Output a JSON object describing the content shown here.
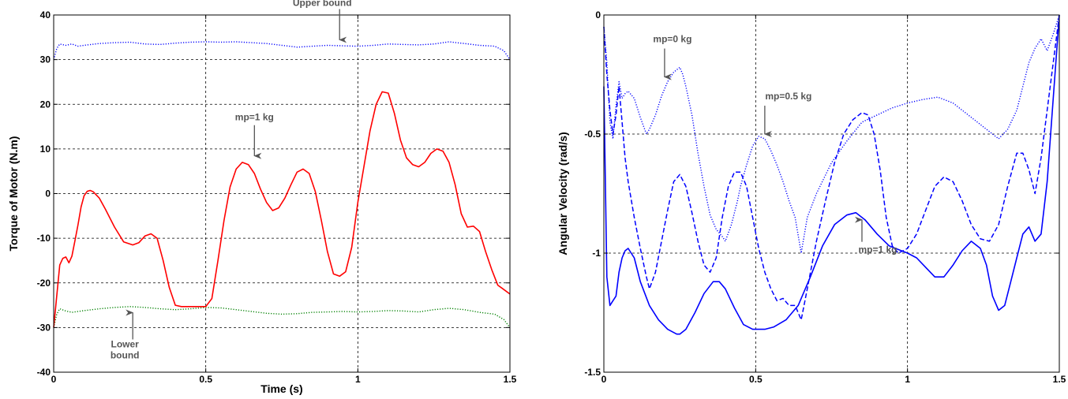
{
  "chart_data": [
    {
      "type": "line",
      "xlabel": "Time (s)",
      "ylabel": "Torque of Motor (N.m)",
      "xlim": [
        0,
        1.5
      ],
      "ylim": [
        -40,
        40
      ],
      "xticks": [
        "0",
        "0.5",
        "1",
        "1.5"
      ],
      "yticks": [
        "-40",
        "-30",
        "-20",
        "-10",
        "0",
        "10",
        "20",
        "30",
        "40"
      ],
      "grid": true,
      "series": [
        {
          "style": "dotted",
          "color": "#0000ff",
          "x": [
            0,
            0.01,
            0.02,
            0.04,
            0.06,
            0.08,
            0.1,
            0.15,
            0.2,
            0.25,
            0.3,
            0.35,
            0.4,
            0.45,
            0.5,
            0.55,
            0.6,
            0.65,
            0.7,
            0.75,
            0.8,
            0.85,
            0.9,
            0.95,
            1.0,
            1.05,
            1.1,
            1.15,
            1.2,
            1.25,
            1.3,
            1.35,
            1.4,
            1.45,
            1.48,
            1.5
          ],
          "y": [
            30,
            32.5,
            33.5,
            33.2,
            33.5,
            33.0,
            33.2,
            33.6,
            33.8,
            33.9,
            33.5,
            33.4,
            33.7,
            33.9,
            34.0,
            33.9,
            34.0,
            33.8,
            33.6,
            33.2,
            32.8,
            33.0,
            33.2,
            33.1,
            33.0,
            33.2,
            33.5,
            33.4,
            33.3,
            33.5,
            34.0,
            33.6,
            33.2,
            33.0,
            32.0,
            30.0
          ]
        },
        {
          "style": "dotted",
          "color": "#008000",
          "x": [
            0,
            0.01,
            0.02,
            0.04,
            0.06,
            0.1,
            0.15,
            0.2,
            0.25,
            0.3,
            0.35,
            0.4,
            0.45,
            0.5,
            0.55,
            0.6,
            0.65,
            0.7,
            0.75,
            0.8,
            0.85,
            0.9,
            0.95,
            1.0,
            1.05,
            1.1,
            1.15,
            1.2,
            1.25,
            1.3,
            1.35,
            1.4,
            1.45,
            1.48,
            1.5
          ],
          "y": [
            -30,
            -27,
            -25.8,
            -26.3,
            -26.6,
            -26.2,
            -25.8,
            -25.5,
            -25.3,
            -25.5,
            -25.8,
            -26.0,
            -25.8,
            -25.5,
            -25.6,
            -26.0,
            -26.4,
            -26.8,
            -27.0,
            -26.9,
            -26.6,
            -26.5,
            -26.4,
            -26.5,
            -26.4,
            -26.2,
            -26.3,
            -26.5,
            -26.0,
            -25.7,
            -26.0,
            -26.6,
            -27.0,
            -28.2,
            -30.0
          ]
        },
        {
          "name": "mp=1 kg",
          "style": "solid",
          "color": "#ff0000",
          "x": [
            0,
            0.02,
            0.03,
            0.04,
            0.05,
            0.06,
            0.07,
            0.08,
            0.09,
            0.1,
            0.11,
            0.12,
            0.13,
            0.15,
            0.17,
            0.2,
            0.23,
            0.26,
            0.28,
            0.3,
            0.32,
            0.34,
            0.36,
            0.38,
            0.4,
            0.42,
            0.44,
            0.46,
            0.48,
            0.5,
            0.52,
            0.54,
            0.56,
            0.58,
            0.6,
            0.62,
            0.64,
            0.66,
            0.68,
            0.7,
            0.72,
            0.74,
            0.76,
            0.78,
            0.8,
            0.82,
            0.84,
            0.86,
            0.88,
            0.9,
            0.92,
            0.94,
            0.96,
            0.98,
            1.0,
            1.02,
            1.04,
            1.06,
            1.08,
            1.1,
            1.12,
            1.14,
            1.16,
            1.18,
            1.2,
            1.22,
            1.24,
            1.26,
            1.28,
            1.3,
            1.32,
            1.34,
            1.36,
            1.38,
            1.4,
            1.42,
            1.44,
            1.46,
            1.48,
            1.5
          ],
          "y": [
            -30,
            -16,
            -14.5,
            -14.2,
            -15.5,
            -14,
            -10.5,
            -7,
            -3,
            -0.5,
            0.5,
            0.7,
            0.4,
            -1,
            -3.5,
            -7.5,
            -10.8,
            -11.5,
            -11,
            -9.5,
            -9,
            -10,
            -15,
            -21,
            -25,
            -25.3,
            -25.3,
            -25.3,
            -25.3,
            -25.3,
            -23.5,
            -15,
            -6,
            1.5,
            5.5,
            7,
            6.5,
            4.5,
            1,
            -2,
            -3.8,
            -3.2,
            -1,
            2,
            4.8,
            5.5,
            4.5,
            0.5,
            -6,
            -13,
            -18,
            -18.5,
            -17.5,
            -12,
            -2,
            6,
            14,
            20,
            22.8,
            22.5,
            18,
            12,
            8,
            6.5,
            6,
            7,
            9,
            10,
            9.5,
            7,
            2,
            -4.5,
            -7.5,
            -7.3,
            -8.5,
            -13,
            -17,
            -20.5,
            -21.5,
            -22.5
          ]
        }
      ],
      "annotations": [
        {
          "text": "Upper bound",
          "x": 0.94,
          "y": 33.2
        },
        {
          "text": "mp=1 kg",
          "x": 0.66,
          "y": 7.2
        },
        {
          "text": "Lower",
          "x": 0.26,
          "y": -25.6
        },
        {
          "text": "bound",
          "x": 0.26,
          "y": -25.6
        }
      ]
    },
    {
      "type": "line",
      "xlabel": "",
      "ylabel": "Angular Velocity (rad/s)",
      "xlim": [
        0,
        1.5
      ],
      "ylim": [
        -1.5,
        0
      ],
      "xticks": [
        "0",
        "0.5",
        "1",
        "1.5"
      ],
      "yticks": [
        "-1.5",
        "-1",
        "-0.5",
        "0"
      ],
      "grid": true,
      "series": [
        {
          "name": "mp=0 kg",
          "style": "dotted",
          "color": "#0000ff",
          "x": [
            0,
            0.01,
            0.02,
            0.03,
            0.04,
            0.05,
            0.06,
            0.07,
            0.08,
            0.1,
            0.12,
            0.14,
            0.15,
            0.17,
            0.19,
            0.21,
            0.23,
            0.25,
            0.26,
            0.27,
            0.29,
            0.31,
            0.33,
            0.35,
            0.37,
            0.39,
            0.4,
            0.42,
            0.44,
            0.45,
            0.47,
            0.49,
            0.51,
            0.53,
            0.55,
            0.57,
            0.59,
            0.61,
            0.63,
            0.65,
            0.67,
            0.7,
            0.75,
            0.8,
            0.85,
            0.9,
            0.95,
            1.0,
            1.05,
            1.1,
            1.15,
            1.2,
            1.25,
            1.3,
            1.33,
            1.36,
            1.38,
            1.4,
            1.42,
            1.44,
            1.46,
            1.48,
            1.5
          ],
          "y": [
            -0.05,
            -0.2,
            -0.45,
            -0.52,
            -0.38,
            -0.28,
            -0.35,
            -0.33,
            -0.32,
            -0.35,
            -0.43,
            -0.5,
            -0.48,
            -0.42,
            -0.34,
            -0.28,
            -0.24,
            -0.22,
            -0.25,
            -0.3,
            -0.42,
            -0.58,
            -0.72,
            -0.84,
            -0.9,
            -0.93,
            -0.95,
            -0.88,
            -0.78,
            -0.72,
            -0.63,
            -0.55,
            -0.51,
            -0.52,
            -0.57,
            -0.63,
            -0.7,
            -0.78,
            -0.85,
            -1.0,
            -0.85,
            -0.75,
            -0.62,
            -0.53,
            -0.45,
            -0.42,
            -0.39,
            -0.37,
            -0.355,
            -0.345,
            -0.37,
            -0.42,
            -0.47,
            -0.52,
            -0.48,
            -0.4,
            -0.3,
            -0.2,
            -0.14,
            -0.1,
            -0.15,
            -0.08,
            0.0
          ]
        },
        {
          "name": "mp=0.5 kg",
          "style": "dashed",
          "color": "#0000ff",
          "x": [
            0,
            0.01,
            0.02,
            0.03,
            0.04,
            0.05,
            0.06,
            0.07,
            0.08,
            0.1,
            0.12,
            0.14,
            0.15,
            0.17,
            0.19,
            0.21,
            0.23,
            0.25,
            0.27,
            0.29,
            0.31,
            0.33,
            0.35,
            0.37,
            0.39,
            0.41,
            0.43,
            0.45,
            0.47,
            0.49,
            0.51,
            0.53,
            0.55,
            0.57,
            0.59,
            0.61,
            0.63,
            0.65,
            0.67,
            0.7,
            0.73,
            0.76,
            0.79,
            0.82,
            0.85,
            0.87,
            0.89,
            0.91,
            0.93,
            0.95,
            0.97,
            1.0,
            1.03,
            1.06,
            1.09,
            1.12,
            1.15,
            1.18,
            1.21,
            1.24,
            1.27,
            1.3,
            1.33,
            1.36,
            1.38,
            1.4,
            1.42,
            1.44,
            1.46,
            1.48,
            1.5
          ],
          "y": [
            -0.05,
            -0.25,
            -0.4,
            -0.5,
            -0.42,
            -0.3,
            -0.45,
            -0.6,
            -0.7,
            -0.85,
            -0.98,
            -1.1,
            -1.15,
            -1.08,
            -0.95,
            -0.82,
            -0.7,
            -0.67,
            -0.72,
            -0.83,
            -0.95,
            -1.05,
            -1.08,
            -1.02,
            -0.85,
            -0.72,
            -0.66,
            -0.66,
            -0.72,
            -0.85,
            -0.98,
            -1.08,
            -1.15,
            -1.2,
            -1.19,
            -1.22,
            -1.22,
            -1.28,
            -1.15,
            -0.95,
            -0.78,
            -0.62,
            -0.5,
            -0.44,
            -0.41,
            -0.42,
            -0.5,
            -0.65,
            -0.85,
            -0.97,
            -1.0,
            -0.98,
            -0.92,
            -0.82,
            -0.72,
            -0.68,
            -0.7,
            -0.78,
            -0.88,
            -0.94,
            -0.95,
            -0.88,
            -0.72,
            -0.58,
            -0.58,
            -0.65,
            -0.75,
            -0.6,
            -0.4,
            -0.2,
            0.0
          ]
        },
        {
          "name": "mp=1 kg",
          "style": "solid",
          "color": "#0000ff",
          "x": [
            0,
            0.01,
            0.02,
            0.03,
            0.04,
            0.05,
            0.06,
            0.07,
            0.08,
            0.1,
            0.12,
            0.15,
            0.18,
            0.21,
            0.24,
            0.25,
            0.27,
            0.3,
            0.33,
            0.36,
            0.38,
            0.4,
            0.43,
            0.46,
            0.49,
            0.51,
            0.53,
            0.56,
            0.6,
            0.64,
            0.68,
            0.72,
            0.76,
            0.8,
            0.83,
            0.86,
            0.9,
            0.94,
            0.98,
            1.0,
            1.03,
            1.06,
            1.09,
            1.12,
            1.15,
            1.18,
            1.21,
            1.24,
            1.26,
            1.28,
            1.3,
            1.32,
            1.34,
            1.36,
            1.38,
            1.4,
            1.42,
            1.44,
            1.46,
            1.48,
            1.5
          ],
          "y": [
            -0.3,
            -1.1,
            -1.22,
            -1.2,
            -1.18,
            -1.08,
            -1.02,
            -0.99,
            -0.98,
            -1.02,
            -1.12,
            -1.22,
            -1.28,
            -1.32,
            -1.34,
            -1.34,
            -1.32,
            -1.25,
            -1.17,
            -1.12,
            -1.12,
            -1.15,
            -1.23,
            -1.3,
            -1.32,
            -1.32,
            -1.32,
            -1.31,
            -1.28,
            -1.22,
            -1.1,
            -0.97,
            -0.88,
            -0.84,
            -0.83,
            -0.86,
            -0.92,
            -0.97,
            -0.99,
            -1.0,
            -1.02,
            -1.06,
            -1.1,
            -1.1,
            -1.05,
            -0.99,
            -0.95,
            -0.98,
            -1.05,
            -1.18,
            -1.24,
            -1.22,
            -1.12,
            -1.02,
            -0.92,
            -0.89,
            -0.95,
            -0.92,
            -0.7,
            -0.35,
            0.0
          ]
        }
      ],
      "annotations": [
        {
          "text": "mp=0 kg",
          "x": 0.2,
          "y": -0.28
        },
        {
          "text": "mp=0.5 kg",
          "x": 0.53,
          "y": -0.52
        },
        {
          "text": "mp=1 kg",
          "x": 0.85,
          "y": -0.84
        }
      ]
    }
  ]
}
